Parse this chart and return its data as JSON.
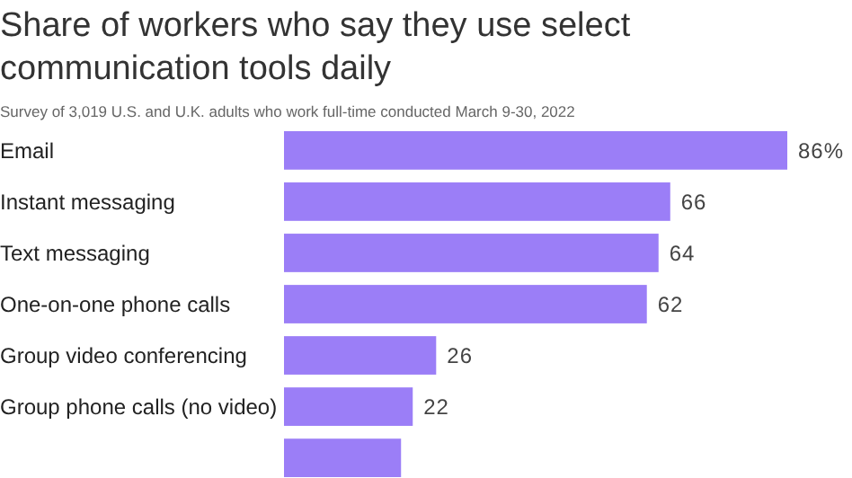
{
  "chart_data": {
    "type": "bar",
    "orientation": "horizontal",
    "title": "Share of workers who say they use select communication tools daily",
    "subtitle": "Survey of 3,019 U.S. and U.K. adults who work full-time conducted March 9-30, 2022",
    "categories": [
      "Email",
      "Instant messaging",
      "Text messaging",
      "One-on-one phone calls",
      "Group video conferencing",
      "Group phone calls (no video)",
      null
    ],
    "values": [
      86,
      66,
      64,
      62,
      26,
      22,
      20
    ],
    "value_labels": [
      "86%",
      "66",
      "64",
      "62",
      "26",
      "22",
      null
    ],
    "color": "#9b7ef7"
  }
}
